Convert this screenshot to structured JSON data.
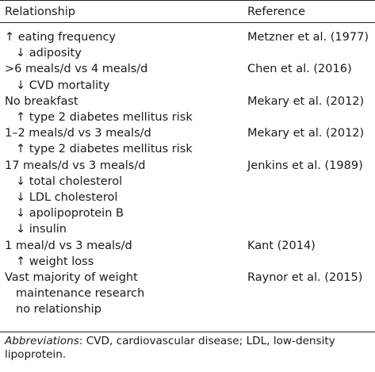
{
  "table": {
    "headers": {
      "relationship": "Relationship",
      "reference": "Reference"
    },
    "rows": [
      {
        "lines": [
          "↑ eating frequency",
          "↓ adiposity"
        ],
        "reference": "Metzner et al. (1977)"
      },
      {
        "lines": [
          ">6 meals/d vs 4 meals/d",
          "↓ CVD mortality"
        ],
        "reference": "Chen et al. (2016)"
      },
      {
        "lines": [
          "No breakfast",
          "↑ type 2 diabetes mellitus risk"
        ],
        "reference": "Mekary et al. (2012)"
      },
      {
        "lines": [
          "1–2 meals/d vs 3 meals/d",
          "↑ type 2 diabetes mellitus risk"
        ],
        "reference": "Mekary et al. (2012)"
      },
      {
        "lines": [
          "17 meals/d vs 3 meals/d",
          "↓ total cholesterol",
          "↓ LDL cholesterol",
          "↓ apolipoprotein B",
          "↓ insulin"
        ],
        "reference": "Jenkins et al. (1989)"
      },
      {
        "lines": [
          "1 meal/d vs 3 meals/d",
          "↑ weight loss"
        ],
        "reference": "Kant (2014)"
      },
      {
        "lines": [
          "Vast majority of weight",
          "maintenance research",
          "no relationship"
        ],
        "reference": "Raynor et al. (2015)"
      }
    ]
  },
  "footnote": {
    "label": "Abbreviations",
    "text": ": CVD, cardiovascular disease; LDL, low-density lipoprotein."
  }
}
